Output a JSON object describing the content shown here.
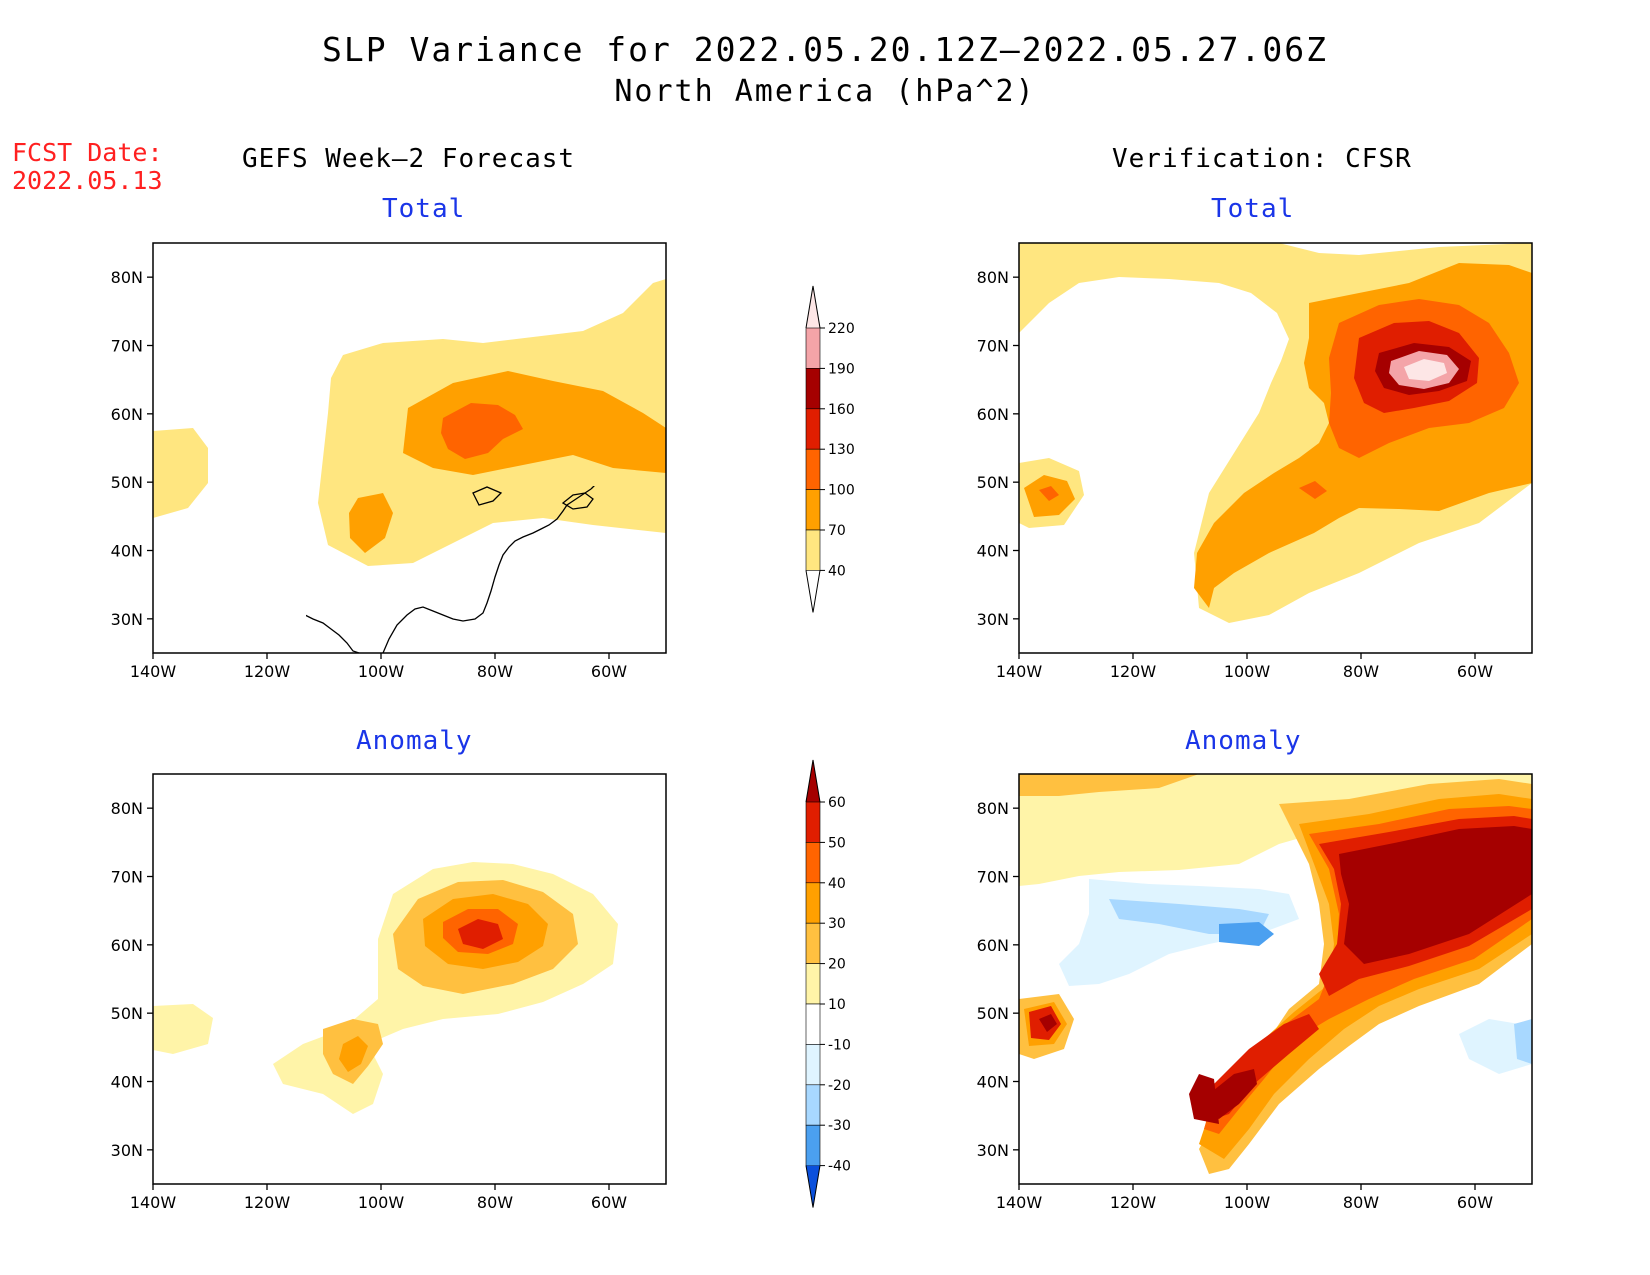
{
  "title": "SLP Variance for 2022.05.20.12Z–2022.05.27.06Z",
  "subtitle": "North America (hPa^2)",
  "fcst_label": "FCST Date:",
  "fcst_date": "2022.05.13",
  "columns": {
    "left": "GEFS Week–2 Forecast",
    "right": "Verification: CFSR"
  },
  "panels": [
    {
      "id": "gefs-total",
      "title": "Total"
    },
    {
      "id": "cfsr-total",
      "title": "Total"
    },
    {
      "id": "gefs-anomaly",
      "title": "Anomaly"
    },
    {
      "id": "cfsr-anomaly",
      "title": "Anomaly"
    }
  ],
  "axes": {
    "lon_ticks": [
      "140W",
      "120W",
      "100W",
      "80W",
      "60W"
    ],
    "lat_ticks": [
      "80N",
      "70N",
      "60N",
      "50N",
      "40N",
      "30N"
    ]
  },
  "colorbars": {
    "total": {
      "labels": [
        "40",
        "70",
        "100",
        "130",
        "160",
        "190",
        "220"
      ],
      "colors": [
        "#ffe680",
        "#ffa000",
        "#ff6400",
        "#e01e00",
        "#a50000",
        "#f4a4a8",
        "#fde6e6"
      ]
    },
    "anomaly": {
      "labels": [
        "60",
        "50",
        "40",
        "30",
        "20",
        "10",
        "-10",
        "-20",
        "-30",
        "-40"
      ],
      "colors": [
        "#a50000",
        "#e01e00",
        "#ff6400",
        "#ffa000",
        "#ffc040",
        "#fff4a8",
        "#ffffff",
        "#dff4ff",
        "#a8d8ff",
        "#4ba0f0",
        "#1e6ee8",
        "#0b50dc"
      ]
    }
  }
}
